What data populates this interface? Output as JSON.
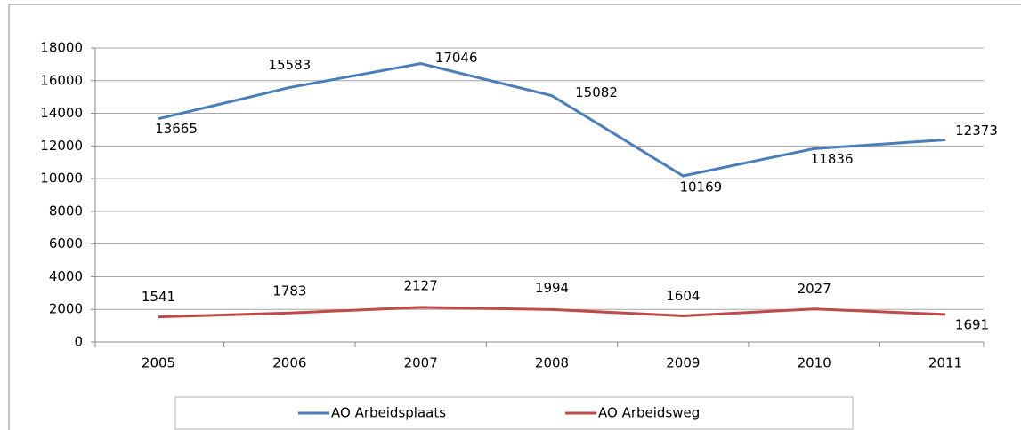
{
  "chart_data": {
    "type": "line",
    "categories": [
      "2005",
      "2006",
      "2007",
      "2008",
      "2009",
      "2010",
      "2011"
    ],
    "series": [
      {
        "name": "AO Arbeidsplaats",
        "color": "#4a7ebb",
        "values": [
          13665,
          15583,
          17046,
          15082,
          10169,
          11836,
          12373
        ]
      },
      {
        "name": "AO Arbeidsweg",
        "color": "#be4b48",
        "values": [
          1541,
          1783,
          2127,
          1994,
          1604,
          2027,
          1691
        ]
      }
    ],
    "ylim": [
      0,
      18000
    ],
    "yticks": [
      0,
      2000,
      4000,
      6000,
      8000,
      10000,
      12000,
      14000,
      16000,
      18000
    ],
    "grid": true,
    "legend": "bottom"
  }
}
